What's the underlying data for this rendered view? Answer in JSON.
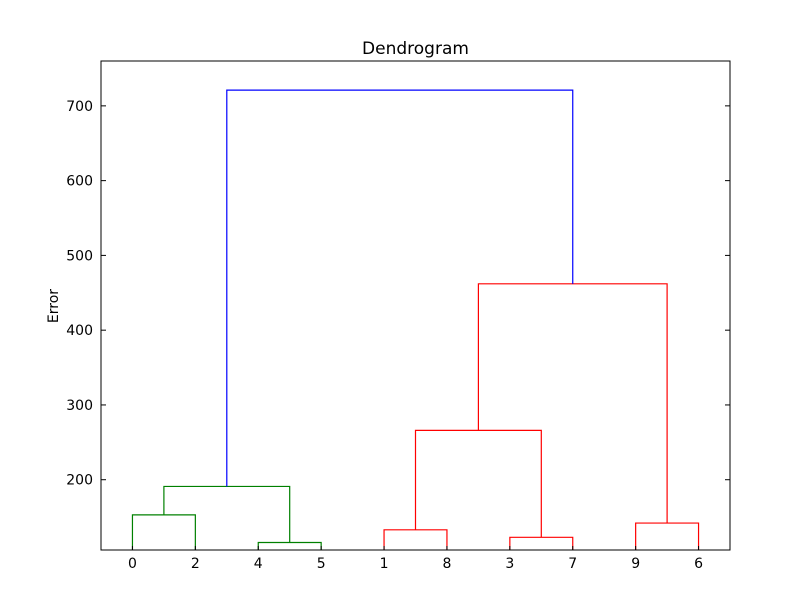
{
  "chart_data": {
    "type": "dendrogram",
    "title": "Dendrogram",
    "xlabel": "",
    "ylabel": "Error",
    "ylim": [
      106,
      760
    ],
    "yticks": [
      200,
      300,
      400,
      500,
      600,
      700
    ],
    "leaves": [
      "0",
      "2",
      "4",
      "5",
      "1",
      "8",
      "3",
      "7",
      "9",
      "6"
    ],
    "merges": [
      {
        "left": "0",
        "right": "2",
        "height": 153,
        "color": "#008000"
      },
      {
        "left": "4",
        "right": "5",
        "height": 116,
        "color": "#008000"
      },
      {
        "left": "(0,2)",
        "right": "(4,5)",
        "height": 191,
        "color": "#008000"
      },
      {
        "left": "1",
        "right": "8",
        "height": 133,
        "color": "#ff0000"
      },
      {
        "left": "3",
        "right": "7",
        "height": 123,
        "color": "#ff0000"
      },
      {
        "left": "(1,8)",
        "right": "(3,7)",
        "height": 266,
        "color": "#ff0000"
      },
      {
        "left": "9",
        "right": "6",
        "height": 142,
        "color": "#ff0000"
      },
      {
        "left": "(1,8,3,7)",
        "right": "(9,6)",
        "height": 462,
        "color": "#ff0000"
      },
      {
        "left": "(0,2,4,5)",
        "right": "(1,8,3,7,9,6)",
        "height": 721,
        "color": "#0000ff"
      }
    ]
  }
}
